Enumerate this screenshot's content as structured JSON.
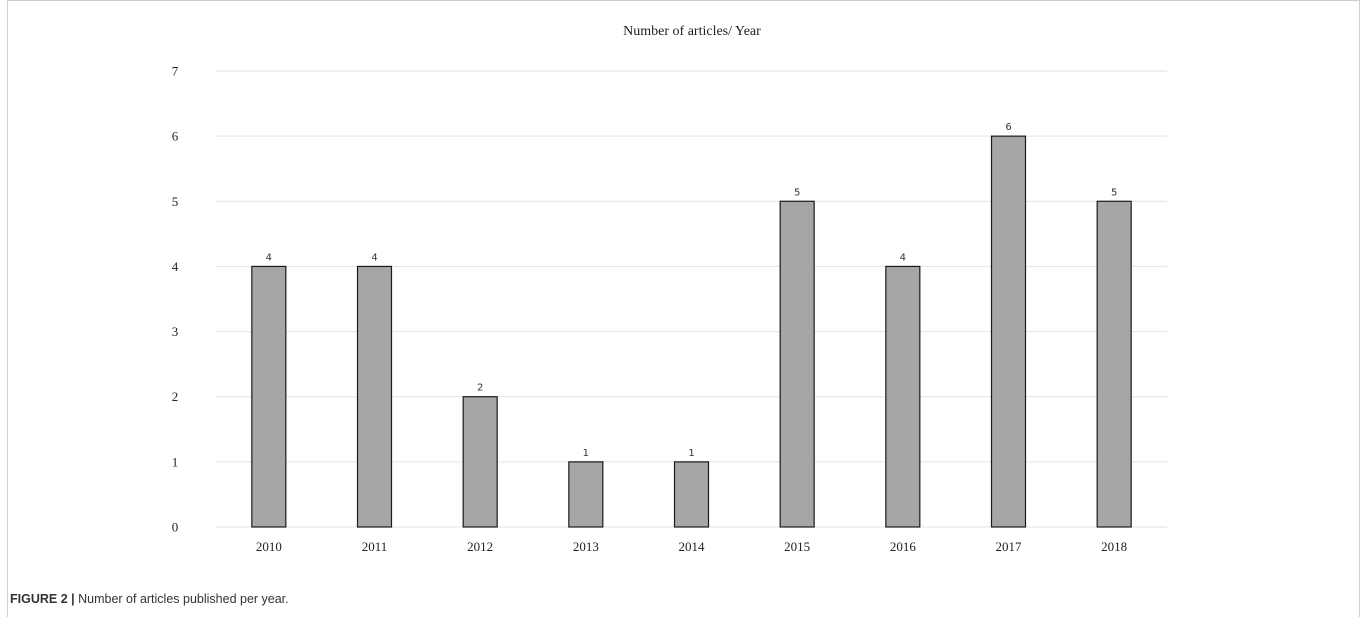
{
  "chart_data": {
    "type": "bar",
    "title": "Number of articles/ Year",
    "categories": [
      "2010",
      "2011",
      "2012",
      "2013",
      "2014",
      "2015",
      "2016",
      "2017",
      "2018"
    ],
    "values": [
      4,
      4,
      2,
      1,
      1,
      5,
      4,
      6,
      5
    ],
    "ylim": [
      0,
      7
    ],
    "yticks": [
      0,
      1,
      2,
      3,
      4,
      5,
      6,
      7
    ],
    "grid": true,
    "legend": "none",
    "data_labels": true,
    "bar_color": "#a6a6a6",
    "bar_edge_color": "#1a1a1a",
    "grid_color": "#e3e3e3"
  },
  "caption": {
    "label": "FIGURE 2 |",
    "text": "Number of articles published per year."
  }
}
